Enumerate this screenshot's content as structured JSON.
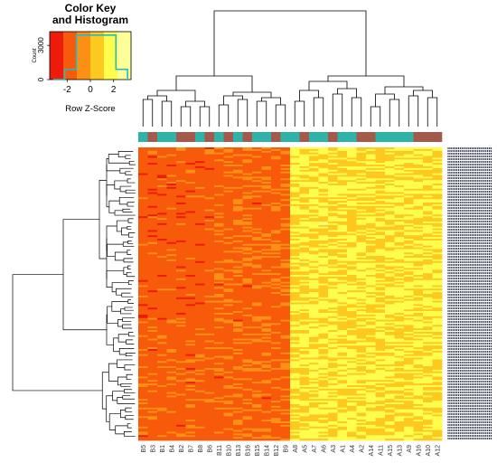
{
  "chart_data": {
    "type": "heatmap",
    "color_key": {
      "title_line1": "Color Key",
      "title_line2": "and Histogram",
      "xlabel": "Row Z-Score",
      "ylabel": "Count",
      "x_ticks": [
        "-2",
        "0",
        "2"
      ],
      "y_ticks": [
        "0",
        "3000"
      ],
      "xlim": [
        -3.5,
        3.5
      ],
      "ylim": [
        0,
        4200
      ],
      "colors": [
        "#ee1a0a",
        "#f85a0b",
        "#fb9015",
        "#fdc91e",
        "#fefd4e",
        "#ffff99"
      ],
      "histogram": [
        {
          "x": -3.2,
          "count": 0
        },
        {
          "x": -2.2,
          "count": 900
        },
        {
          "x": -1.2,
          "count": 3900
        },
        {
          "x": 0.0,
          "count": 3900
        },
        {
          "x": 1.2,
          "count": 3900
        },
        {
          "x": 2.2,
          "count": 900
        },
        {
          "x": 3.2,
          "count": 0
        }
      ]
    },
    "columns": [
      "B5",
      "B3",
      "B1",
      "B4",
      "B2",
      "B7",
      "B8",
      "B6",
      "B11",
      "B10",
      "B13",
      "B16",
      "B15",
      "B14",
      "B12",
      "B9",
      "A8",
      "A5",
      "A7",
      "A6",
      "A3",
      "A1",
      "A4",
      "A2",
      "A14",
      "A11",
      "A15",
      "A13",
      "A9",
      "A16",
      "A10",
      "A12"
    ],
    "column_groups": [
      "teal",
      "brown",
      "teal",
      "teal",
      "brown",
      "brown",
      "teal",
      "brown",
      "teal",
      "brown",
      "teal",
      "brown",
      "teal",
      "teal",
      "brown",
      "teal",
      "teal",
      "brown",
      "teal",
      "teal",
      "brown",
      "teal",
      "teal",
      "brown",
      "brown",
      "teal",
      "teal",
      "teal",
      "teal",
      "brown",
      "brown",
      "brown"
    ],
    "group_colors": {
      "teal": "#2fb2a8",
      "brown": "#a35a4a"
    },
    "b_block_mean_zscore": -1.4,
    "a_block_mean_zscore": 1.2,
    "row_label_color": "#2a2f4f"
  }
}
